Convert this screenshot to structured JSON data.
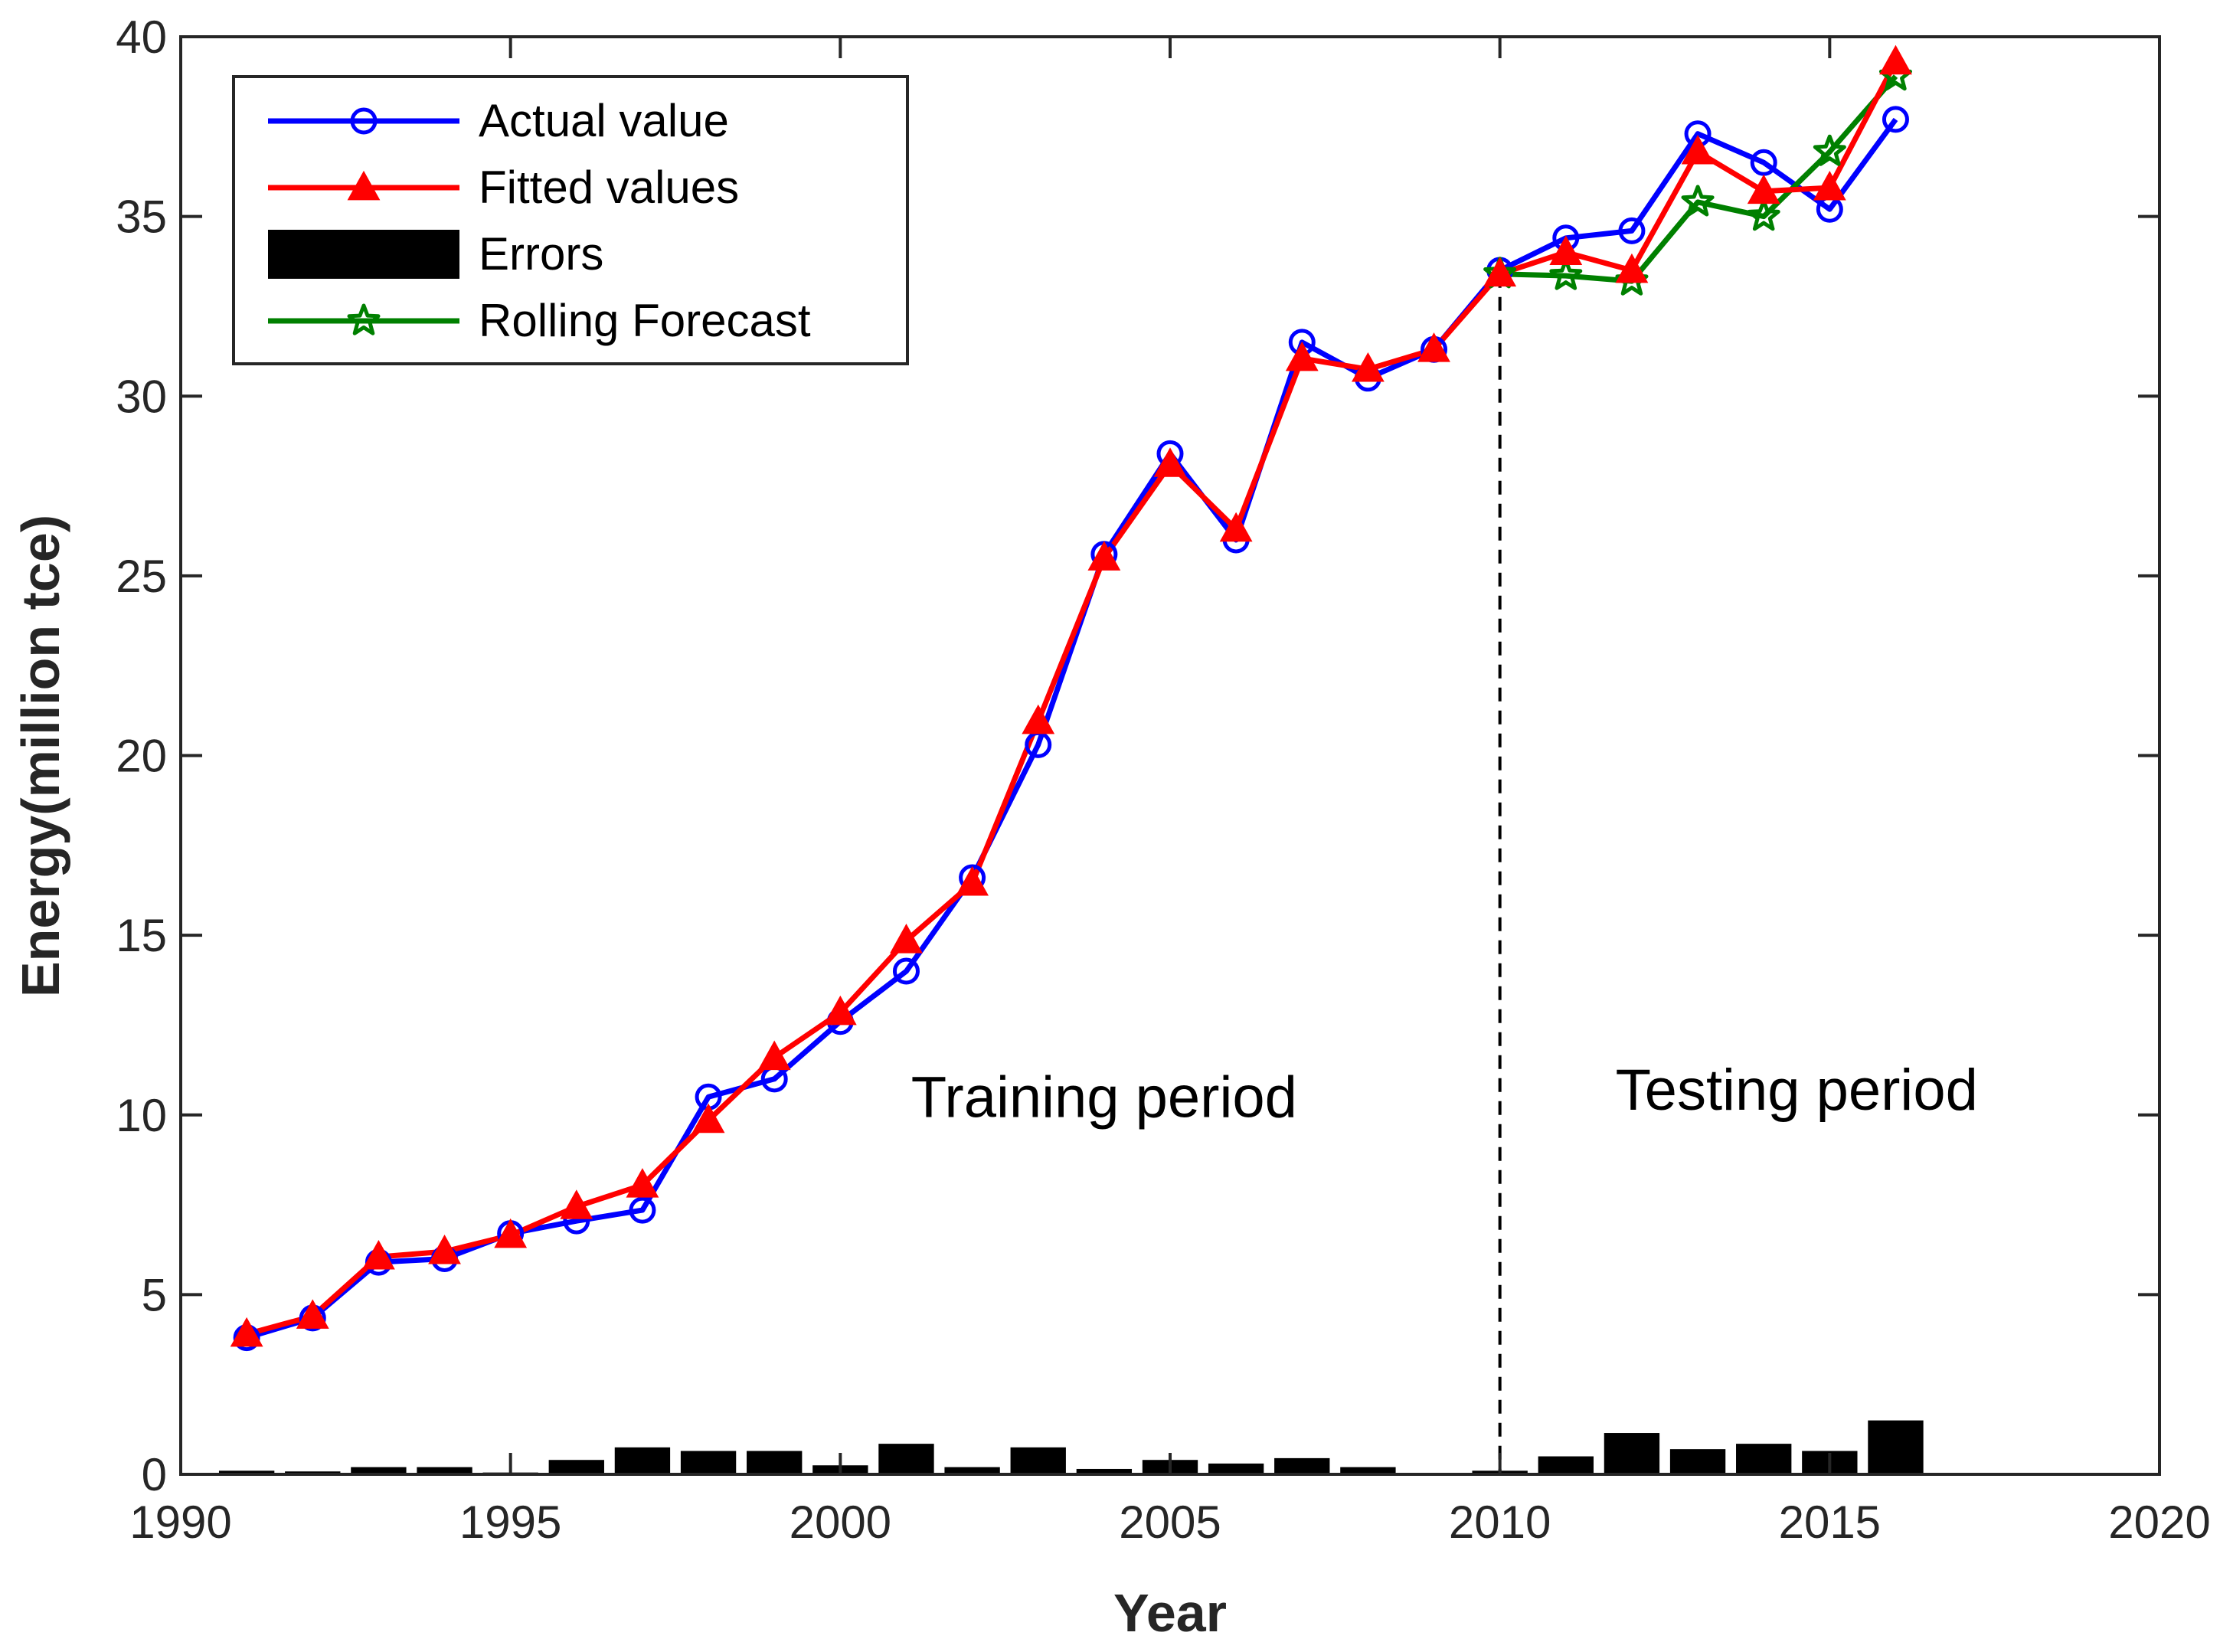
{
  "chart_data": {
    "type": "line",
    "title": "",
    "xlabel": "Year",
    "ylabel": "Energy(million tce)",
    "xlim": [
      1990,
      2020
    ],
    "ylim": [
      0,
      40
    ],
    "xticks": [
      1990,
      1995,
      2000,
      2005,
      2010,
      2015,
      2020
    ],
    "yticks": [
      0,
      5,
      10,
      15,
      20,
      25,
      30,
      35,
      40
    ],
    "grid": false,
    "legend_position": "top-left",
    "split_year": 2010,
    "annotations": [
      {
        "text": "Training period",
        "x": 2004.0,
        "y": 10.5
      },
      {
        "text": "Testing period",
        "x": 2014.5,
        "y": 10.7
      }
    ],
    "series": [
      {
        "name": "Actual value",
        "kind": "line",
        "color": "#0000ff",
        "marker": "circle",
        "x": [
          1991,
          1992,
          1993,
          1994,
          1995,
          1996,
          1997,
          1998,
          1999,
          2000,
          2001,
          2002,
          2003,
          2004,
          2005,
          2006,
          2007,
          2008,
          2009,
          2010,
          2011,
          2012,
          2013,
          2014,
          2015,
          2016
        ],
        "values": [
          3.8,
          4.35,
          5.9,
          6.0,
          6.7,
          7.05,
          7.35,
          10.5,
          11.0,
          12.6,
          14.0,
          16.6,
          20.3,
          25.6,
          28.4,
          26.0,
          31.5,
          30.5,
          31.3,
          33.5,
          34.4,
          34.6,
          37.3,
          36.5,
          35.2,
          37.7
        ]
      },
      {
        "name": "Fitted values",
        "kind": "line",
        "color": "#ff0000",
        "marker": "triangle",
        "x": [
          1991,
          1992,
          1993,
          1994,
          1995,
          1996,
          1997,
          1998,
          1999,
          2000,
          2001,
          2002,
          2003,
          2004,
          2005,
          2006,
          2007,
          2008,
          2009,
          2010,
          2011,
          2012,
          2013,
          2014,
          2015,
          2016
        ],
        "values": [
          3.9,
          4.4,
          6.05,
          6.2,
          6.65,
          7.45,
          8.05,
          9.85,
          11.6,
          12.85,
          14.85,
          16.45,
          20.95,
          25.5,
          28.1,
          26.3,
          31.05,
          30.75,
          31.3,
          33.4,
          34.0,
          33.5,
          36.8,
          35.7,
          35.8,
          39.3
        ]
      },
      {
        "name": "Errors",
        "kind": "bar",
        "color": "#000000",
        "x": [
          1991,
          1992,
          1993,
          1994,
          1995,
          1996,
          1997,
          1998,
          1999,
          2000,
          2001,
          2002,
          2003,
          2004,
          2005,
          2006,
          2007,
          2008,
          2009,
          2010,
          2011,
          2012,
          2013,
          2014,
          2015,
          2016
        ],
        "values": [
          0.1,
          0.08,
          0.2,
          0.2,
          0.05,
          0.4,
          0.75,
          0.65,
          0.65,
          0.25,
          0.85,
          0.2,
          0.75,
          0.15,
          0.4,
          0.3,
          0.45,
          0.2,
          0.02,
          0.1,
          0.5,
          1.15,
          0.7,
          0.85,
          0.65,
          1.5
        ]
      },
      {
        "name": "Rolling Forecast",
        "kind": "line",
        "color": "#008000",
        "marker": "star",
        "x": [
          2010,
          2011,
          2012,
          2013,
          2014,
          2015,
          2016
        ],
        "values": [
          33.4,
          33.35,
          33.2,
          35.4,
          35.0,
          36.8,
          38.9
        ]
      }
    ]
  }
}
